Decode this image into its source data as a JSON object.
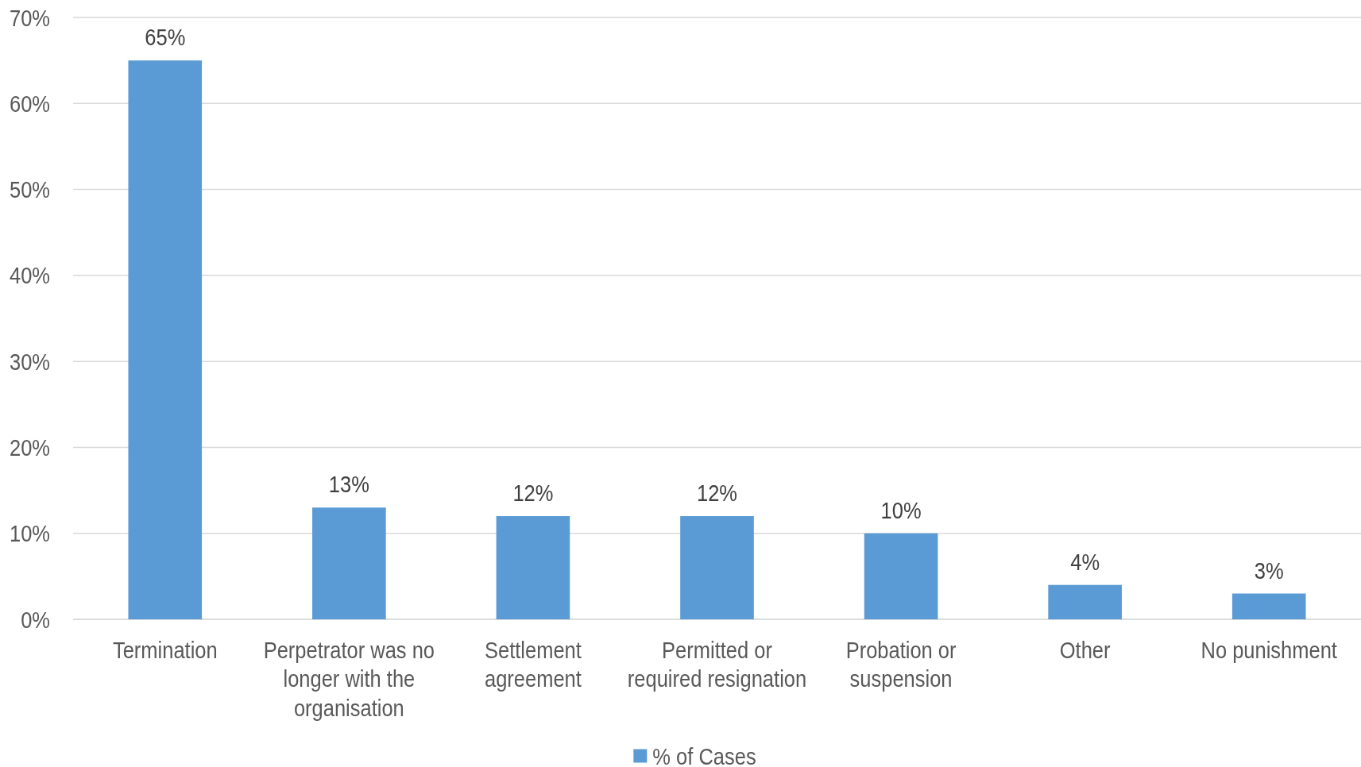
{
  "chart_data": {
    "type": "bar",
    "categories": [
      "Termination",
      "Perpetrator was no longer with the organisation",
      "Settlement agreement",
      "Permitted or required resignation",
      "Probation or suspension",
      "Other",
      "No punishment"
    ],
    "series": [
      {
        "name": "% of Cases",
        "color": "#5b9bd5",
        "values": [
          65,
          13,
          12,
          12,
          10,
          4,
          3
        ],
        "value_labels": [
          "65%",
          "13%",
          "12%",
          "12%",
          "10%",
          "4%",
          "3%"
        ]
      }
    ],
    "ylim": [
      0,
      70
    ],
    "yticks": [
      {
        "value": 0,
        "label": "0%"
      },
      {
        "value": 10,
        "label": "10%"
      },
      {
        "value": 20,
        "label": "20%"
      },
      {
        "value": 30,
        "label": "30%"
      },
      {
        "value": 40,
        "label": "40%"
      },
      {
        "value": 50,
        "label": "50%"
      },
      {
        "value": 60,
        "label": "60%"
      },
      {
        "value": 70,
        "label": "70%"
      }
    ],
    "grid": "y",
    "legend": "bottom"
  }
}
